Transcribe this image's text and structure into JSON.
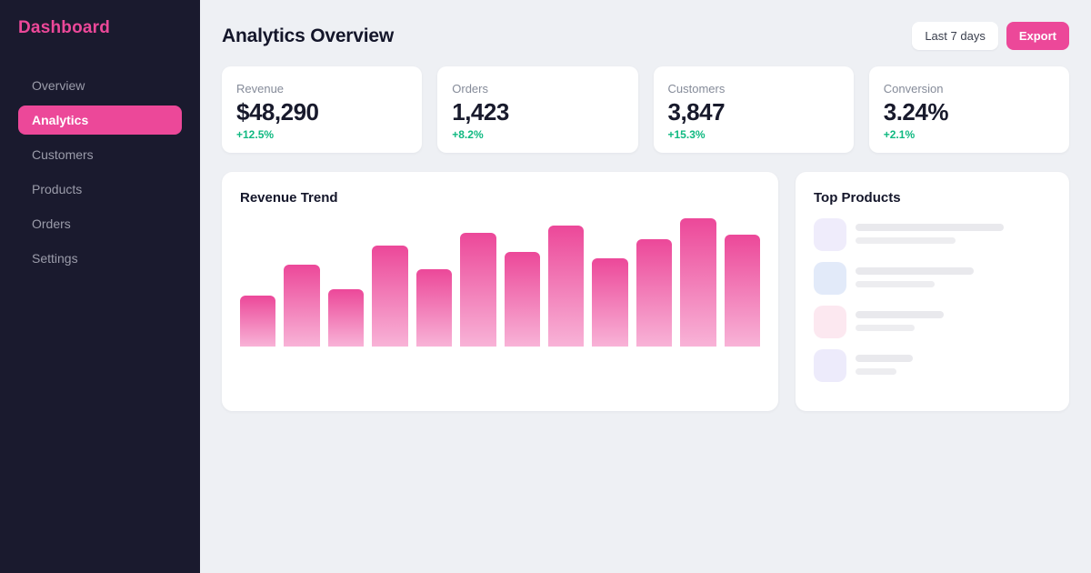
{
  "colors": {
    "accent": "#ec4899",
    "positive": "#10b981",
    "sidebar_bg": "#1a1a2e",
    "page_bg": "#eef0f4",
    "card_bg": "#ffffff"
  },
  "sidebar": {
    "brand": "Dashboard",
    "items": [
      {
        "label": "Overview",
        "active": false
      },
      {
        "label": "Analytics",
        "active": true
      },
      {
        "label": "Customers",
        "active": false
      },
      {
        "label": "Products",
        "active": false
      },
      {
        "label": "Orders",
        "active": false
      },
      {
        "label": "Settings",
        "active": false
      }
    ]
  },
  "header": {
    "title": "Analytics Overview",
    "range_button_label": "Last 7 days",
    "export_button_label": "Export"
  },
  "stats": [
    {
      "label": "Revenue",
      "value": "$48,290",
      "change": "+12.5%"
    },
    {
      "label": "Orders",
      "value": "1,423",
      "change": "+8.2%"
    },
    {
      "label": "Customers",
      "value": "3,847",
      "change": "+15.3%"
    },
    {
      "label": "Conversion",
      "value": "3.24%",
      "change": "+2.1%"
    }
  ],
  "chart_data": {
    "type": "bar",
    "title": "Revenue Trend",
    "categories": [],
    "values": [
      40,
      64,
      45,
      79,
      60,
      89,
      74,
      94,
      69,
      84,
      100,
      87
    ],
    "value_unit": "percent-of-max-bar-height (no numeric axis shown)",
    "xlabel": "",
    "ylabel": "",
    "axis_labels_visible": false,
    "grid": false,
    "legend": "none",
    "bar_gradient": [
      "#ec4899",
      "#f8b3d7"
    ]
  },
  "top_products": {
    "title": "Top Products",
    "skeleton_rows": [
      {
        "icon_color": "#efecfb",
        "line1_width": 163,
        "line2_width": 110
      },
      {
        "icon_color": "#e2eaf9",
        "line1_width": 130,
        "line2_width": 87
      },
      {
        "icon_color": "#fce8f0",
        "line1_width": 97,
        "line2_width": 65
      },
      {
        "icon_color": "#edebfb",
        "line1_width": 63,
        "line2_width": 45
      }
    ]
  }
}
